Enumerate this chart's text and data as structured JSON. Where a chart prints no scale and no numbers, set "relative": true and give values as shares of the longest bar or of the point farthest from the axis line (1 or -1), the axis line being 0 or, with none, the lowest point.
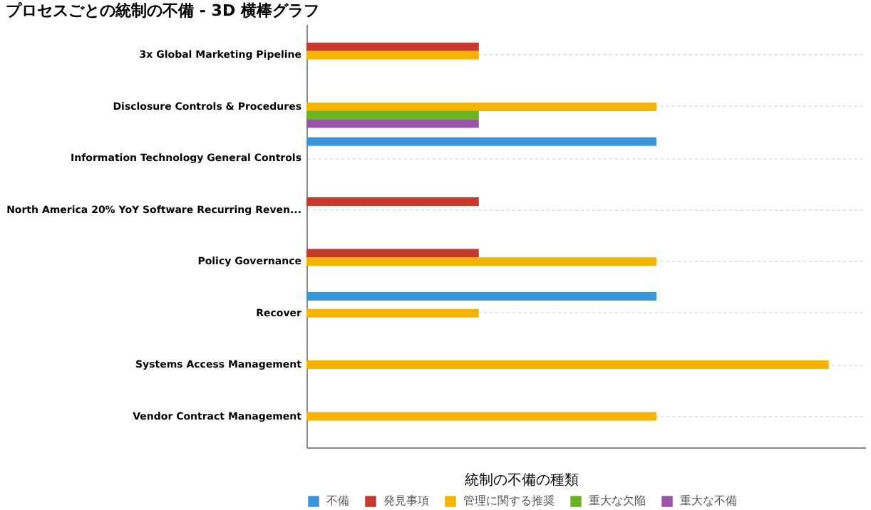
{
  "chart_data": {
    "type": "bar",
    "orientation": "horizontal",
    "relative": true,
    "title": "プロセスごとの統制の不備 - 3D 横棒グラフ",
    "categories": [
      "3x Global Marketing Pipeline",
      "Disclosure Controls & Procedures",
      "Information Technology General Controls",
      "North America 20% YoY Software Recurring Reven...",
      "Policy Governance",
      "Recover",
      "Systems Access Management",
      "Vendor Contract Management"
    ],
    "series": [
      {
        "name": "不備",
        "color": "#3a95db",
        "values": [
          null,
          null,
          0.67,
          null,
          null,
          0.67,
          null,
          null
        ]
      },
      {
        "name": "発見事項",
        "color": "#c9392b",
        "values": [
          0.33,
          null,
          null,
          0.33,
          0.33,
          null,
          null,
          null
        ]
      },
      {
        "name": "管理に関する推奨",
        "color": "#f5b400",
        "values": [
          0.33,
          0.67,
          null,
          null,
          0.67,
          0.33,
          1,
          0.67
        ]
      },
      {
        "name": "重大な欠陥",
        "color": "#6ab321",
        "values": [
          null,
          0.33,
          null,
          null,
          null,
          null,
          null,
          null
        ]
      },
      {
        "name": "重大な不備",
        "color": "#9b55a8",
        "values": [
          null,
          0.33,
          null,
          null,
          null,
          null,
          null,
          null
        ]
      }
    ],
    "legend_title": "統制の不備の種類",
    "legend": "bottom",
    "grid": "y"
  }
}
